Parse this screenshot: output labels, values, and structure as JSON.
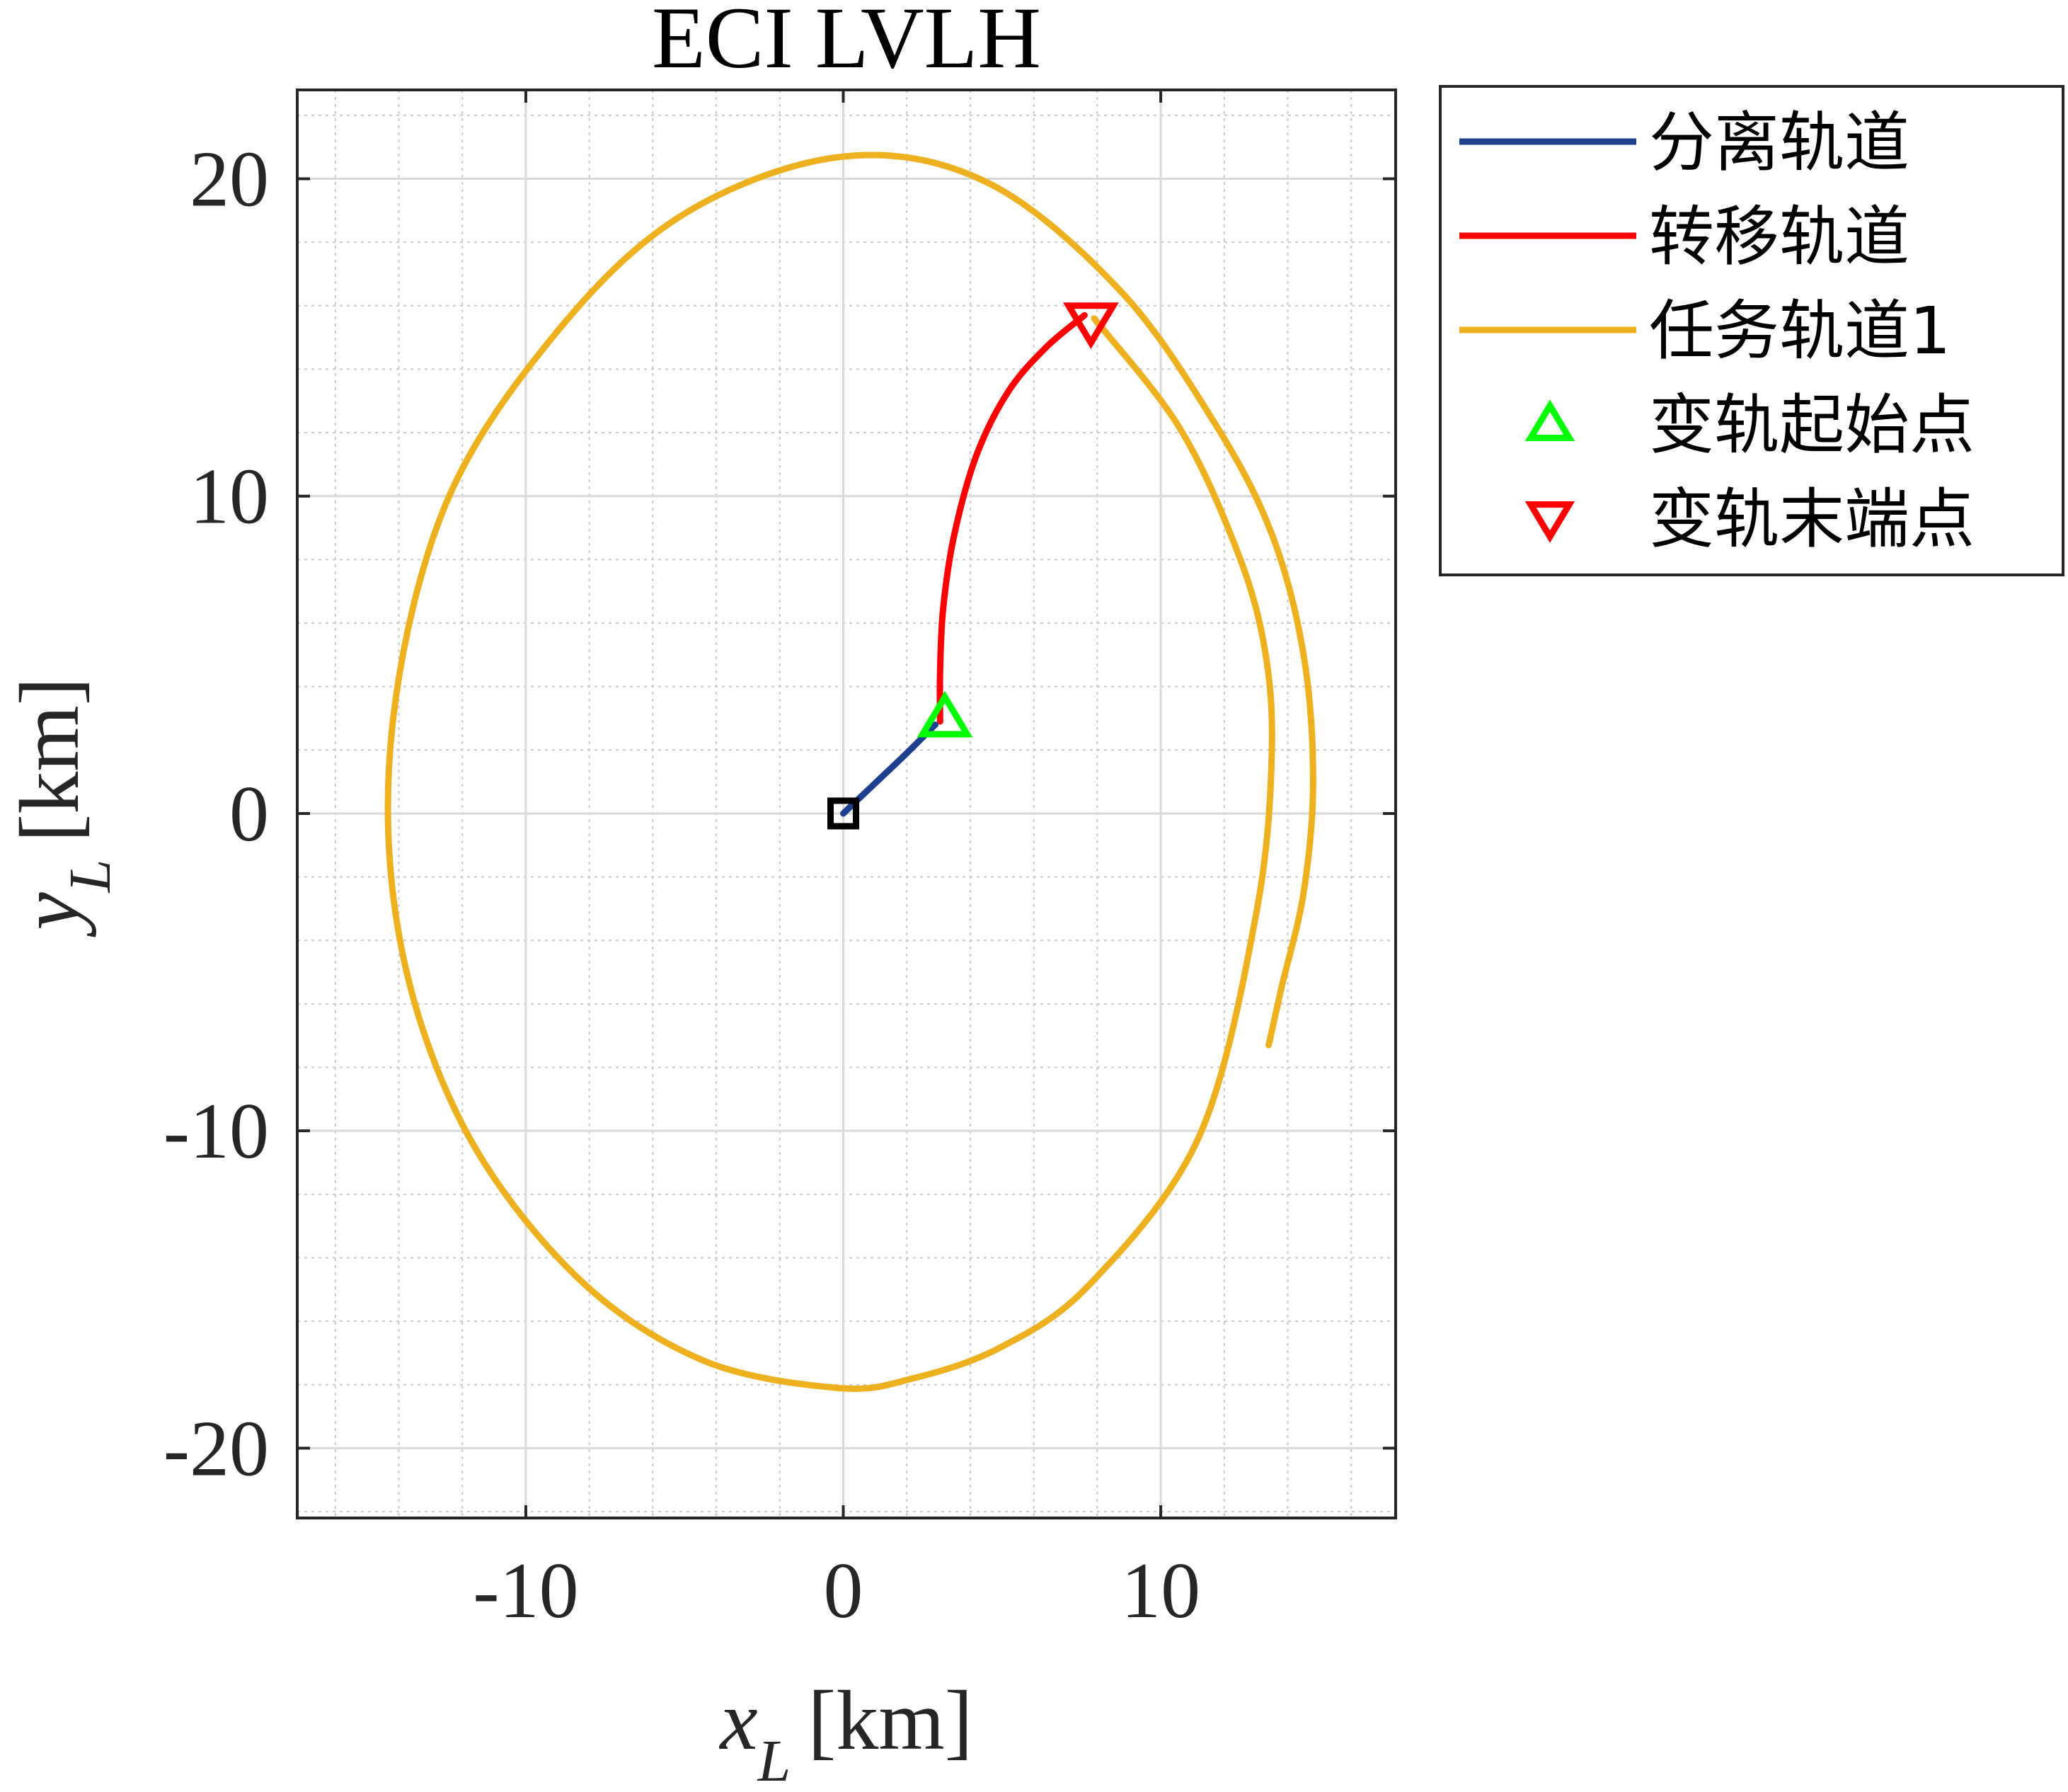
{
  "chart_data": {
    "type": "line",
    "title": "ECI LVLH",
    "xlabel": {
      "var": "x",
      "sub": "L",
      "unit": "[km]"
    },
    "ylabel": {
      "var": "y",
      "sub": "L",
      "unit": "[km]"
    },
    "xlim": [
      -17.2,
      17.4
    ],
    "ylim": [
      -22.2,
      22.8
    ],
    "xticks": [
      -10,
      0,
      10
    ],
    "xtick_labels": [
      "-10",
      "0",
      "10"
    ],
    "yticks": [
      -20,
      -10,
      0,
      10,
      20
    ],
    "ytick_labels": [
      "-20",
      "-10",
      "0",
      "10",
      "20"
    ],
    "grid": true,
    "minor_grid": true,
    "legend_position": "outside-right-top",
    "series": [
      {
        "name": "分离轨道",
        "color": "#1f3f8f",
        "points": [
          [
            0,
            0
          ],
          [
            1.0,
            0.95
          ],
          [
            2.0,
            1.9
          ],
          [
            2.9,
            2.8
          ]
        ]
      },
      {
        "name": "转移轨道",
        "color": "#ff0000",
        "points": [
          [
            3.05,
            2.9
          ],
          [
            3.05,
            4.5
          ],
          [
            3.15,
            6.5
          ],
          [
            3.5,
            8.8
          ],
          [
            4.2,
            11.3
          ],
          [
            5.2,
            13.3
          ],
          [
            6.4,
            14.7
          ],
          [
            7.6,
            15.7
          ]
        ]
      },
      {
        "name": "任务轨道1",
        "color": "#edb120",
        "points": [
          [
            7.9,
            15.6
          ],
          [
            10.5,
            12.3
          ],
          [
            12.2,
            8.8
          ],
          [
            13.2,
            5.6
          ],
          [
            13.5,
            2.0
          ],
          [
            13.0,
            -3.2
          ],
          [
            11.2,
            -10.2
          ],
          [
            7.8,
            -14.8
          ],
          [
            5.0,
            -16.8
          ],
          [
            2.2,
            -17.8
          ],
          [
            -0.2,
            -18.1
          ],
          [
            -4.5,
            -17.2
          ],
          [
            -8.5,
            -14.5
          ],
          [
            -12.0,
            -9.8
          ],
          [
            -14.0,
            -3.8
          ],
          [
            -14.2,
            2.8
          ],
          [
            -12.5,
            9.8
          ],
          [
            -9.0,
            15.2
          ],
          [
            -5.0,
            18.9
          ],
          [
            0.0,
            20.7
          ],
          [
            4.5,
            19.9
          ],
          [
            8.7,
            16.5
          ],
          [
            11.7,
            12.3
          ],
          [
            13.5,
            8.8
          ],
          [
            14.5,
            5.0
          ],
          [
            14.8,
            1.0
          ],
          [
            14.5,
            -2.5
          ],
          [
            13.8,
            -5.5
          ],
          [
            13.4,
            -7.3
          ]
        ]
      },
      {
        "name": "变轨起始点",
        "color": "#00ff00",
        "marker": "triangle-up",
        "points": [
          [
            3.2,
            3.0
          ]
        ]
      },
      {
        "name": "变轨末端点",
        "color": "#ff0000",
        "marker": "triangle-down",
        "points": [
          [
            7.8,
            15.5
          ]
        ]
      },
      {
        "color": "#000000",
        "marker": "square",
        "points": [
          [
            0,
            0
          ]
        ]
      }
    ]
  }
}
